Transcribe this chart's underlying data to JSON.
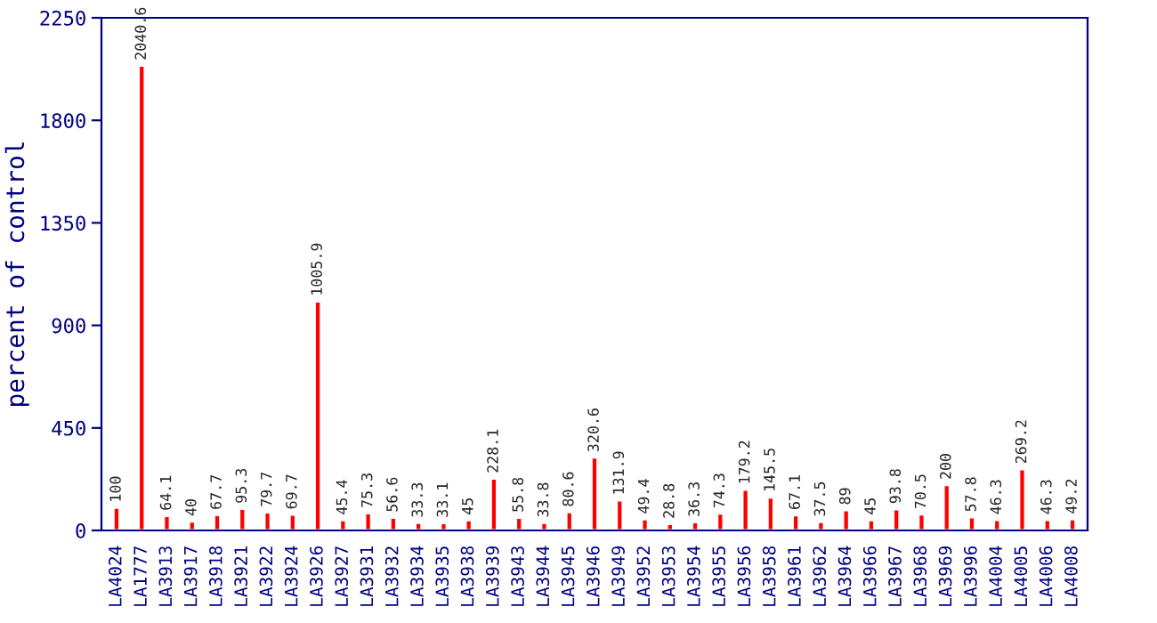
{
  "chart_data": {
    "type": "bar",
    "ylabel": "percent of control",
    "categories": [
      "LA4024",
      "LA1777",
      "LA3913",
      "LA3917",
      "LA3918",
      "LA3921",
      "LA3922",
      "LA3924",
      "LA3926",
      "LA3927",
      "LA3931",
      "LA3932",
      "LA3934",
      "LA3935",
      "LA3938",
      "LA3939",
      "LA3943",
      "LA3944",
      "LA3945",
      "LA3946",
      "LA3949",
      "LA3952",
      "LA3953",
      "LA3954",
      "LA3955",
      "LA3956",
      "LA3958",
      "LA3961",
      "LA3962",
      "LA3964",
      "LA3966",
      "LA3967",
      "LA3968",
      "LA3969",
      "LA3996",
      "LA4004",
      "LA4005",
      "LA4006",
      "LA4008"
    ],
    "values": [
      100,
      2040.6,
      64.1,
      40,
      67.7,
      95.3,
      79.7,
      69.7,
      1005.9,
      45.4,
      75.3,
      56.6,
      33.3,
      33.1,
      45,
      228.1,
      55.8,
      33.8,
      80.6,
      320.6,
      131.9,
      49.4,
      28.8,
      36.3,
      74.3,
      179.2,
      145.5,
      67.1,
      37.5,
      89,
      45,
      93.8,
      70.5,
      200,
      57.8,
      46.3,
      269.2,
      46.3,
      49.2
    ],
    "color": "#ff0000",
    "ylim": [
      0,
      2250
    ],
    "yticks": [
      0,
      450,
      900,
      1350,
      1800,
      2250
    ],
    "grid": false,
    "data_labels": true
  }
}
